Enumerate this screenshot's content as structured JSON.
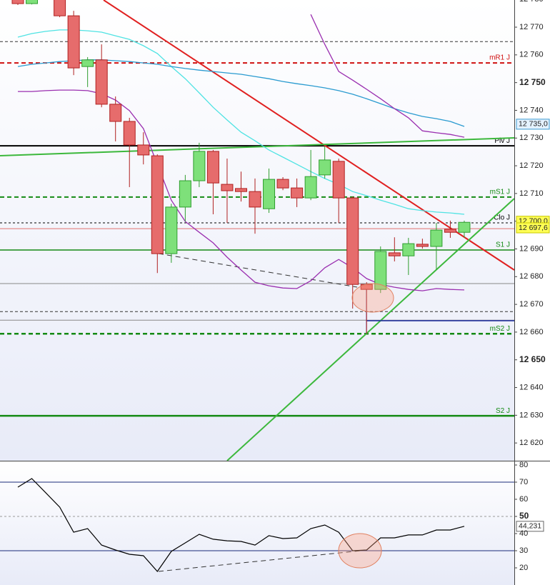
{
  "chart_data": [
    {
      "type": "candlestick",
      "up_color": "#7ee07a",
      "up_border": "#2f9e2f",
      "down_color": "#e66c6c",
      "down_border": "#b02020",
      "open": [
        12781.1,
        12778.5,
        null,
        12781.0,
        12774.1,
        12755.8,
        12758.2,
        12742.2,
        12736.0,
        12727.5,
        12723.6,
        12688.3,
        12705.1,
        12714.6,
        12725.2,
        12713.3,
        12711.8,
        12710.7,
        12704.5,
        12715.1,
        12712.0,
        12708.4,
        12716.7,
        12721.6,
        12708.4,
        12677.2,
        12675.4,
        12688.6,
        12687.5,
        12691.7,
        12690.9,
        12697.1,
        12696.0
      ],
      "high": [
        12781.5,
        12781.5,
        null,
        12781.5,
        12775.9,
        12759.2,
        12763.8,
        12745.0,
        12737.3,
        12732.1,
        12724.1,
        12706.3,
        12716.7,
        12728.3,
        12725.7,
        12722.6,
        12717.9,
        12715.4,
        12719.0,
        12715.9,
        12715.4,
        12725.7,
        12727.0,
        12722.6,
        12708.9,
        12678.0,
        12690.9,
        12694.2,
        12694.0,
        12693.7,
        12699.4,
        12700.2,
        12700.2
      ],
      "low": [
        12778.0,
        12778.2,
        null,
        12773.6,
        12752.7,
        12748.4,
        12741.1,
        12728.8,
        12712.3,
        12720.5,
        12681.3,
        12685.0,
        12699.9,
        12712.3,
        12702.5,
        12699.4,
        12707.1,
        12695.5,
        12703.0,
        12711.2,
        12705.1,
        12707.6,
        12715.4,
        12699.4,
        12668.5,
        12659.4,
        12674.1,
        12685.5,
        12680.6,
        12690.1,
        12682.6,
        12694.0,
        12694.0
      ],
      "close": [
        12778.5,
        12781.0,
        null,
        12774.1,
        12755.3,
        12758.2,
        12742.2,
        12736.0,
        12727.5,
        12723.9,
        12688.3,
        12705.1,
        12714.6,
        12725.2,
        12713.8,
        12711.0,
        12710.7,
        12705.1,
        12715.1,
        12712.0,
        12708.4,
        12716.1,
        12722.1,
        12708.4,
        12677.2,
        12675.4,
        12689.1,
        12687.5,
        12691.9,
        12690.9,
        12696.8,
        12696.0,
        12699.6
      ],
      "series": [
        {
          "color": "#4fe3e3",
          "values": [
            12766.4,
            12767.7,
            12768.5,
            12769.0,
            12769.0,
            12768.7,
            12768.2,
            12766.9,
            12765.6,
            12763.3,
            12760.5,
            12755.8,
            12751.4,
            12746.3,
            12741.1,
            12736.5,
            12732.1,
            12729.0,
            12725.7,
            12723.1,
            12720.5,
            12717.9,
            12715.4,
            12713.3,
            12710.7,
            12709.2,
            12707.6,
            12706.1,
            12704.5,
            12703.8,
            12703.3,
            12703.0,
            12702.5
          ]
        },
        {
          "color": "#2a9bd0",
          "values": [
            12755.8,
            12756.6,
            12757.1,
            12757.6,
            12757.9,
            12758.2,
            12758.2,
            12757.9,
            12757.6,
            12757.1,
            12756.6,
            12755.8,
            12755.1,
            12754.5,
            12754.0,
            12753.5,
            12753.0,
            12752.2,
            12751.4,
            12750.4,
            12749.6,
            12748.9,
            12748.1,
            12747.1,
            12745.8,
            12744.2,
            12742.4,
            12740.6,
            12739.1,
            12737.8,
            12737.0,
            12736.0,
            12734.2
          ]
        },
        {
          "color": "#9a2fb0",
          "values": [
            12746.8,
            12746.8,
            12747.1,
            12747.3,
            12747.3,
            12747.1,
            12746.0,
            12743.7,
            12739.9,
            12733.4,
            12720.5,
            12707.6,
            12699.9,
            12696.0,
            12692.2,
            12687.0,
            12682.4,
            12678.0,
            12676.7,
            12675.9,
            12675.7,
            12678.5,
            12683.2,
            12686.2,
            12683.2,
            12679.3,
            12677.2,
            12676.2,
            12675.4,
            12674.9,
            12675.7,
            12675.4,
            12675.2
          ]
        },
        {
          "color": "#9a2fb0",
          "values": [
            null,
            null,
            null,
            null,
            null,
            null,
            null,
            null,
            null,
            null,
            null,
            null,
            null,
            null,
            null,
            null,
            null,
            null,
            null,
            null,
            null,
            12774.6,
            12763.8,
            12754.0,
            12750.9,
            12747.6,
            12744.2,
            12740.6,
            12737.3,
            12732.6,
            12731.9,
            12731.3,
            12730.3
          ]
        }
      ],
      "levels": [
        {
          "label": "mR1 J",
          "value": 12757.1,
          "color": "#d01010",
          "dash": "6 4",
          "width": 2
        },
        {
          "label": "Piv J",
          "value": 12727.2,
          "color": "#000000",
          "dash": "none",
          "width": 2
        },
        {
          "label": "mS1 J",
          "value": 12708.7,
          "color": "#148a14",
          "dash": "6 4",
          "width": 2
        },
        {
          "label": "Clo J",
          "value": 12699.4,
          "color": "#000000",
          "dash": "3 3",
          "width": 1
        },
        {
          "label": "S1 J",
          "value": 12689.6,
          "color": "#148a14",
          "dash": "none",
          "width": 1.5
        },
        {
          "label": "mS2 J",
          "value": 12659.4,
          "color": "#148a14",
          "dash": "6 4",
          "width": 2.5
        },
        {
          "label": "S2 J",
          "value": 12629.8,
          "color": "#148a14",
          "dash": "none",
          "width": 2.5
        }
      ],
      "lines": [
        {
          "value": 12764.8,
          "color": "#333333",
          "dash": "4 3"
        },
        {
          "value": 12667.4,
          "color": "#333333",
          "dash": "4 3"
        },
        {
          "value": 12697.3,
          "color": "#e07070",
          "dash": "none"
        },
        {
          "value": 12677.5,
          "color": "#888888",
          "dash": "none"
        },
        {
          "value": 12664.3,
          "color": "#888888",
          "dash": "none"
        }
      ],
      "price_tags": [
        {
          "value": 12735.0,
          "label": "12 735,0",
          "color": "#e4f2ff",
          "border": "#3a9ad0"
        },
        {
          "value": 12700.0,
          "label": "12 700,0",
          "color": "#ffff55",
          "border": "#c8c800"
        },
        {
          "value": 12697.6,
          "label": "12 697,6",
          "color": "#ffff55",
          "border": "#c8c800"
        }
      ],
      "ylim": [
        12613.6,
        12779.8
      ],
      "yticks": [
        {
          "value": 12780,
          "label": "12 780"
        },
        {
          "value": 12770,
          "label": "12 770"
        },
        {
          "value": 12760,
          "label": "12 760"
        },
        {
          "value": 12750,
          "label": "12 750"
        },
        {
          "value": 12740,
          "label": "12 740"
        },
        {
          "value": 12730,
          "label": "12 730"
        },
        {
          "value": 12720,
          "label": "12 720"
        },
        {
          "value": 12710,
          "label": "12 710"
        },
        {
          "value": 12700,
          "label": "12 700"
        },
        {
          "value": 12690,
          "label": "12 690"
        },
        {
          "value": 12680,
          "label": "12 680"
        },
        {
          "value": 12670,
          "label": "12 670"
        },
        {
          "value": 12660,
          "label": "12 660"
        },
        {
          "value": 12650,
          "label": "12 650"
        },
        {
          "value": 12640,
          "label": "12 640"
        },
        {
          "value": 12630,
          "label": "12 630"
        },
        {
          "value": 12620,
          "label": "12 620"
        }
      ]
    },
    {
      "type": "line",
      "series": [
        {
          "color": "#000000",
          "values": [
            67.1,
            72.1,
            63.8,
            55.4,
            40.8,
            42.9,
            33.3,
            30.4,
            27.9,
            27.1,
            17.9,
            29.6,
            34.6,
            39.6,
            36.7,
            35.8,
            35.4,
            33.3,
            38.8,
            37.1,
            37.5,
            42.9,
            45.0,
            40.8,
            30.0,
            30.4,
            37.5,
            37.5,
            39.2,
            39.2,
            42.1,
            42.1,
            44.231
          ],
          "value_labels": [
            null,
            null,
            null,
            null,
            null,
            null,
            null,
            null,
            null,
            null,
            null,
            null,
            null,
            null,
            null,
            null,
            null,
            null,
            null,
            null,
            null,
            null,
            null,
            null,
            null,
            null,
            null,
            null,
            null,
            null,
            null,
            null,
            "44,231"
          ]
        }
      ],
      "hlines": [
        {
          "value": 70,
          "color": "#1a2a7a",
          "dash": "none"
        },
        {
          "value": 50,
          "color": "#999999",
          "dash": "3 3"
        },
        {
          "value": 30,
          "color": "#1a2a7a",
          "dash": "none"
        }
      ],
      "ylim": [
        10,
        82.5
      ],
      "yticks": [
        80,
        70,
        60,
        50,
        40,
        30,
        20
      ]
    }
  ]
}
